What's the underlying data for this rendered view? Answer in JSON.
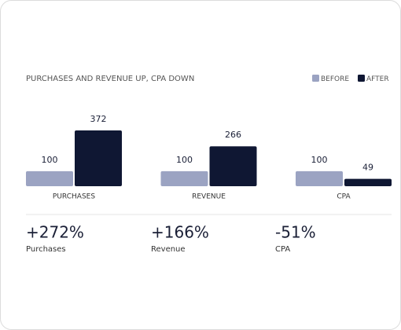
{
  "chart_data": {
    "type": "bar",
    "title": "PURCHASES AND REVENUE UP, CPA DOWN",
    "categories": [
      "PURCHASES",
      "REVENUE",
      "CPA"
    ],
    "series": [
      {
        "name": "BEFORE",
        "color": "#9ba3c2",
        "values": [
          100,
          100,
          100
        ]
      },
      {
        "name": "AFTER",
        "color": "#0f1733",
        "values": [
          372,
          266,
          49
        ]
      }
    ],
    "legend": "top-right"
  },
  "summary": [
    {
      "value": "+272%",
      "label": "Purchases"
    },
    {
      "value": "+166%",
      "label": "Revenue"
    },
    {
      "value": "-51%",
      "label": "CPA"
    }
  ]
}
